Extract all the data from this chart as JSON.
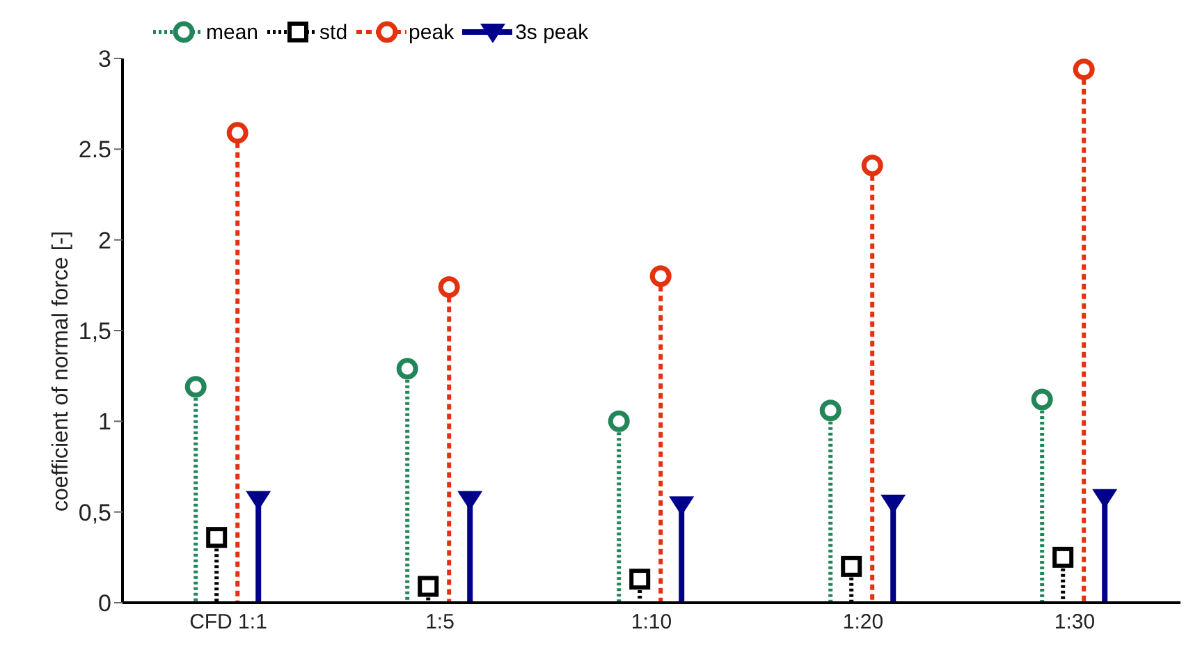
{
  "chart_data": {
    "type": "lollipop",
    "ylabel": "coefficient of normal force [-]",
    "categories": [
      "CFD 1:1",
      "1:5",
      "1:10",
      "1:20",
      "1:30"
    ],
    "ylim": [
      0,
      3
    ],
    "yticks": [
      0,
      {
        "value": 0.5,
        "label": "0,5"
      },
      1,
      {
        "value": 1.5,
        "label": "1,5"
      },
      2,
      2.5,
      3
    ],
    "grid": false,
    "legend": "top left",
    "series": [
      {
        "name": "mean",
        "color": "#23865a",
        "marker": "circle",
        "line_style": "dotted",
        "values": [
          1.19,
          1.29,
          1.0,
          1.06,
          1.12
        ]
      },
      {
        "name": "std",
        "color": "#000000",
        "marker": "square",
        "line_style": "dotted",
        "values": [
          0.36,
          0.09,
          0.13,
          0.2,
          0.25
        ]
      },
      {
        "name": "peak",
        "color": "#e3320f",
        "marker": "circle",
        "line_style": "dashed",
        "values": [
          2.59,
          1.74,
          1.8,
          2.41,
          2.94
        ]
      },
      {
        "name": "3s peak",
        "color": "#00008b",
        "marker": "triangle",
        "line_style": "solid",
        "values": [
          0.57,
          0.57,
          0.54,
          0.55,
          0.58
        ]
      }
    ]
  }
}
